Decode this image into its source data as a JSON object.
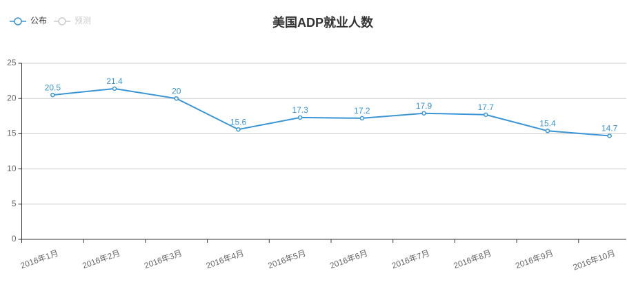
{
  "chart_data": {
    "type": "line",
    "title": "美国ADP就业人数",
    "categories": [
      "2016年1月",
      "2016年2月",
      "2016年3月",
      "2016年4月",
      "2016年5月",
      "2016年6月",
      "2016年7月",
      "2016年8月",
      "2016年9月",
      "2016年10月"
    ],
    "series": [
      {
        "name": "公布",
        "color": "#3a95d5",
        "values": [
          20.5,
          21.4,
          20,
          15.6,
          17.3,
          17.2,
          17.9,
          17.7,
          15.4,
          14.7
        ]
      },
      {
        "name": "预测",
        "color": "#cccccc",
        "values": [
          null,
          null,
          null,
          null,
          null,
          null,
          null,
          null,
          null,
          null
        ]
      }
    ],
    "ylim": [
      0,
      25
    ],
    "yticks": [
      0,
      5,
      10,
      15,
      20,
      25
    ],
    "grid": true,
    "legend": "top-left"
  }
}
